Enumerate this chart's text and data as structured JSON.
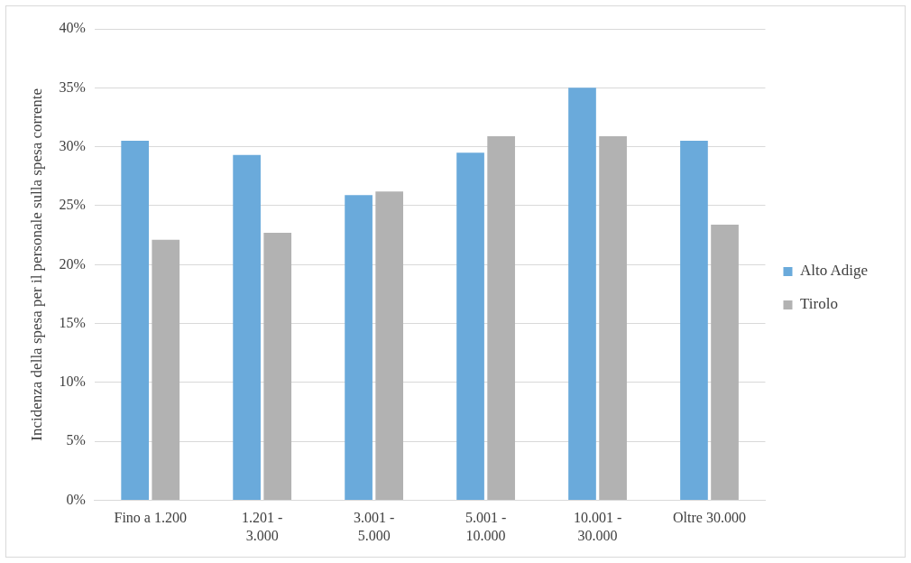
{
  "chart_data": {
    "type": "bar",
    "ylabel": "Incidenza della spesa per il personale sulla spesa corrente",
    "categories": [
      "Fino a 1.200",
      "1.201 - 3.000",
      "3.001 - 5.000",
      "5.001 - 10.000",
      "10.001 - 30.000",
      "Oltre 30.000"
    ],
    "series": [
      {
        "name": "Alto Adige",
        "color": "#6aaadb",
        "values": [
          30.5,
          29.3,
          25.9,
          29.5,
          35,
          30.5
        ]
      },
      {
        "name": "Tirolo",
        "color": "#b2b2b2",
        "values": [
          22.1,
          22.7,
          26.2,
          30.9,
          30.9,
          23.4
        ]
      }
    ],
    "ylim": [
      0,
      40
    ],
    "yticks": [
      {
        "value": 0,
        "label": "0%"
      },
      {
        "value": 5,
        "label": "5%"
      },
      {
        "value": 10,
        "label": "10%"
      },
      {
        "value": 15,
        "label": "15%"
      },
      {
        "value": 20,
        "label": "20%"
      },
      {
        "value": 25,
        "label": "25%"
      },
      {
        "value": 30,
        "label": "30%"
      },
      {
        "value": 35,
        "label": "35%"
      },
      {
        "value": 40,
        "label": "40%"
      }
    ],
    "grid": "y",
    "legend": "right"
  }
}
